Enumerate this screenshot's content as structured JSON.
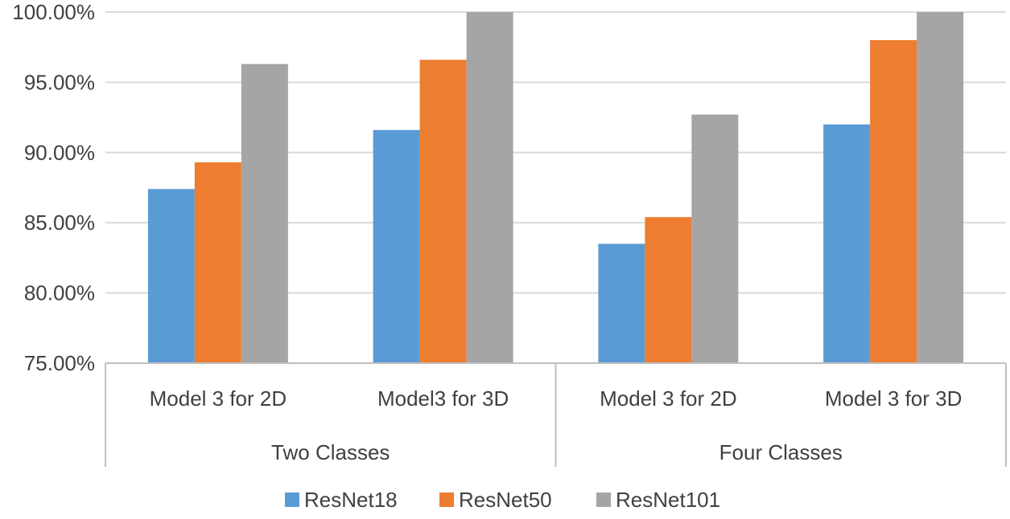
{
  "chart_data": {
    "type": "bar",
    "title": "",
    "xlabel": "",
    "ylabel": "",
    "ylim": [
      0.75,
      1.0
    ],
    "yticks": [
      0.75,
      0.8,
      0.85,
      0.9,
      0.95,
      1.0
    ],
    "ytick_labels": [
      "75.00%",
      "80.00%",
      "85.00%",
      "90.00%",
      "95.00%",
      "100.00%"
    ],
    "groups": [
      {
        "label": "Two Classes",
        "categories": [
          "Model 3 for 2D",
          "Model3 for 3D"
        ]
      },
      {
        "label": "Four Classes",
        "categories": [
          "Model 3 for 2D",
          "Model 3 for 3D"
        ]
      }
    ],
    "categories": [
      "Model 3 for 2D",
      "Model3 for 3D",
      "Model 3 for 2D",
      "Model 3 for 3D"
    ],
    "series": [
      {
        "name": "ResNet18",
        "color": "#5b9bd5",
        "values": [
          0.874,
          0.916,
          0.835,
          0.92
        ]
      },
      {
        "name": "ResNet50",
        "color": "#ed7d31",
        "values": [
          0.893,
          0.966,
          0.854,
          0.98
        ]
      },
      {
        "name": "ResNet101",
        "color": "#a5a5a5",
        "values": [
          0.963,
          1.0,
          0.927,
          1.0
        ]
      }
    ],
    "legend_position": "bottom",
    "grid": true
  }
}
